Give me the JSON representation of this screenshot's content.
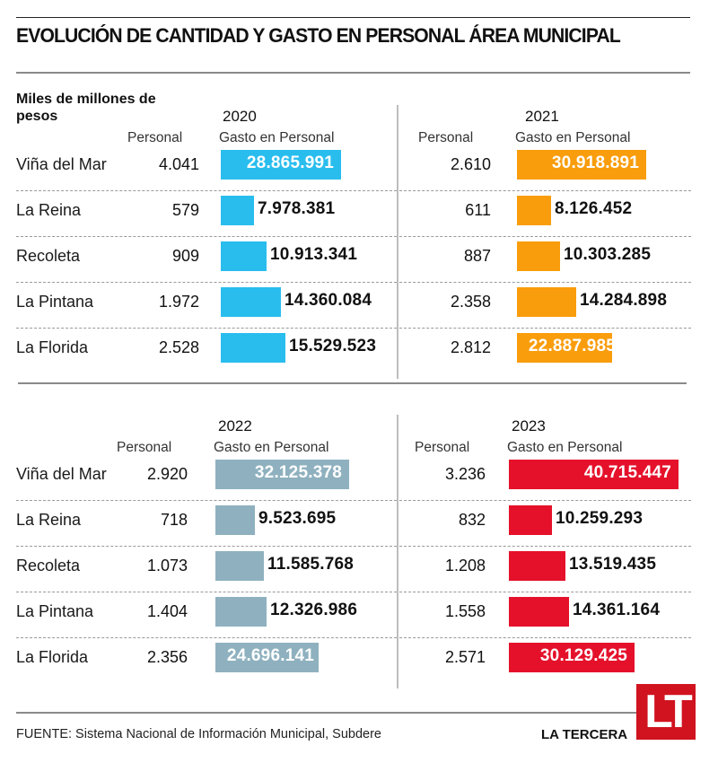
{
  "title": "EVOLUCIÓN DE CANTIDAD Y GASTO EN PERSONAL ÁREA MUNICIPAL",
  "unit_label": "Miles de millones de pesos",
  "column_headers": {
    "personal": "Personal",
    "gasto": "Gasto en Personal"
  },
  "footer": {
    "source": "FUENTE: Sistema Nacional de Información Municipal, Subdere",
    "brand": "LA TERCERA",
    "logo": "LT"
  },
  "colors": {
    "2020": "#29bdee",
    "2021": "#f99d0c",
    "2022": "#8fb1bf",
    "2023": "#e5112b",
    "logo": "#d0131f"
  },
  "chart_data": {
    "type": "bar",
    "title": "EVOLUCIÓN DE CANTIDAD Y GASTO EN PERSONAL ÁREA MUNICIPAL",
    "ylabel": "Miles de millones de pesos",
    "categories": [
      "Viña del Mar",
      "La Reina",
      "Recoleta",
      "La Pintana",
      "La Florida"
    ],
    "panels": [
      {
        "year": "2020",
        "personal": [
          "4.041",
          "579",
          "909",
          "1.972",
          "2.528"
        ],
        "gasto_labels": [
          "28.865.991",
          "7.978.381",
          "10.913.341",
          "14.360.084",
          "15.529.523"
        ],
        "gasto": [
          28865991,
          7978381,
          10913341,
          14360084,
          15529523
        ],
        "label_inside": [
          true,
          false,
          false,
          false,
          false
        ]
      },
      {
        "year": "2021",
        "personal": [
          "2.610",
          "611",
          "887",
          "2.358",
          "2.812"
        ],
        "gasto_labels": [
          "30.918.891",
          "8.126.452",
          "10.303.285",
          "14.284.898",
          "22.887.985"
        ],
        "gasto": [
          30918891,
          8126452,
          10303285,
          14284898,
          22887985
        ],
        "label_inside": [
          true,
          false,
          false,
          false,
          true
        ]
      },
      {
        "year": "2022",
        "personal": [
          "2.920",
          "718",
          "1.073",
          "1.404",
          "2.356"
        ],
        "gasto_labels": [
          "32.125.378",
          "9.523.695",
          "11.585.768",
          "12.326.986",
          "24.696.141"
        ],
        "gasto": [
          32125378,
          9523695,
          11585768,
          12326986,
          24696141
        ],
        "label_inside": [
          true,
          false,
          false,
          false,
          true
        ]
      },
      {
        "year": "2023",
        "personal": [
          "3.236",
          "832",
          "1.208",
          "1.558",
          "2.571"
        ],
        "gasto_labels": [
          "40.715.447",
          "10.259.293",
          "13.519.435",
          "14.361.164",
          "30.129.425"
        ],
        "gasto": [
          40715447,
          10259293,
          13519435,
          14361164,
          30129425
        ],
        "label_inside": [
          true,
          false,
          false,
          false,
          true
        ]
      }
    ]
  }
}
